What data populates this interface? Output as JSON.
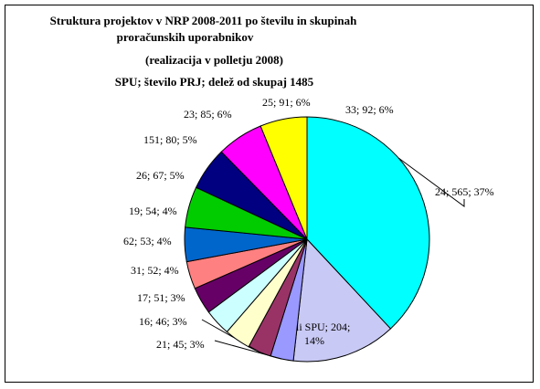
{
  "chart_data": {
    "type": "pie",
    "title_lines": [
      "Struktura projektov v NRP 2008-2011 po številu in skupinah",
      "proračunskih uporabnikov",
      "(realizacija v polletju 2008)",
      "SPU; število PRJ; delež od skupaj 1485"
    ],
    "total": 1485,
    "slices": [
      {
        "label": "24; 565; 37%",
        "value": 565,
        "color": "#00FFFF"
      },
      {
        "label": "ostali SPU; 204; 14%",
        "label_lines": [
          "ostali SPU; 204;",
          "14%"
        ],
        "value": 204,
        "color": "#C9C9F5"
      },
      {
        "label": "21; 45; 3%",
        "value": 45,
        "color": "#9999FF"
      },
      {
        "label": "16; 46; 3%",
        "value": 46,
        "color": "#993366"
      },
      {
        "label": "17; 51; 3%",
        "value": 51,
        "color": "#FFFFCC"
      },
      {
        "label": "31; 52; 4%",
        "value": 52,
        "color": "#CCFFFF"
      },
      {
        "label": "62; 53; 4%",
        "value": 53,
        "color": "#660066"
      },
      {
        "label": "19; 54; 4%",
        "value": 54,
        "color": "#FF8080"
      },
      {
        "label": "26; 67; 5%",
        "value": 67,
        "color": "#0066CC"
      },
      {
        "label": "151; 80; 5%",
        "value": 80,
        "color": "#00CC00"
      },
      {
        "label": "23; 85; 6%",
        "value": 85,
        "color": "#000080"
      },
      {
        "label": "25; 91; 6%",
        "value": 91,
        "color": "#FF00FF"
      },
      {
        "label": "33; 92; 6%",
        "value": 92,
        "color": "#FFFF00"
      }
    ],
    "start_angle_deg": -90,
    "direction": "clockwise",
    "legend": "none"
  }
}
